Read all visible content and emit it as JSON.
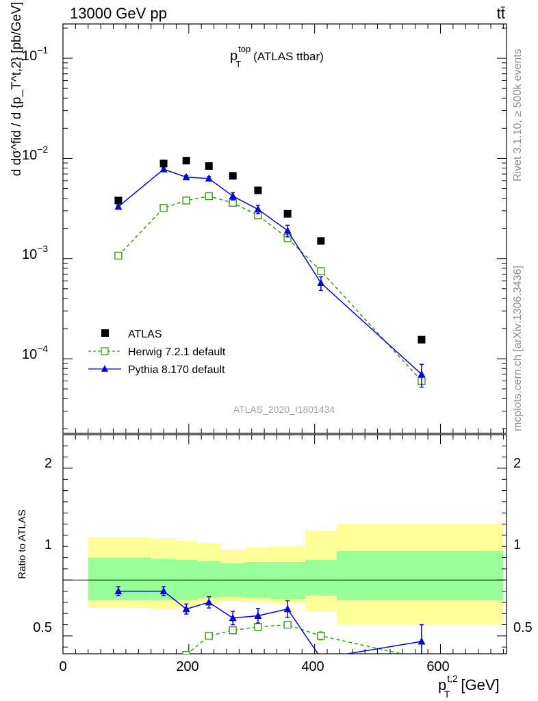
{
  "header": {
    "energy_label": "13000 GeV pp",
    "process_label": "tt̄"
  },
  "side_labels": {
    "rivet": "Rivet 3.1.10, ≥ 500k events",
    "source": "mcplots.cern.ch [arXiv:1306.3436]"
  },
  "chart_data": [
    {
      "type": "scatter",
      "panel": "main",
      "title": "p_T^top (ATLAS ttbar)",
      "title_main": "p",
      "title_sup": "top",
      "title_sub": "T",
      "title_rest": "(ATLAS ttbar)",
      "ylabel": "d dσ^fid / d {p_T^t,2} [pb/GeV]",
      "yscale": "log",
      "ylim": [
        1.8e-05,
        0.22
      ],
      "xlim": [
        0,
        705
      ],
      "y_tick_labels": [
        "10",
        "10",
        "10",
        "10"
      ],
      "y_tick_exponents": [
        "−1",
        "−2",
        "−3",
        "−4"
      ],
      "analysis_label": "ATLAS_2020_I1801434",
      "series": [
        {
          "name": "ATLAS",
          "marker": "filled-square",
          "color": "#000000",
          "points": [
            {
              "x": 88,
              "y": 0.0038
            },
            {
              "x": 160,
              "y": 0.0089
            },
            {
              "x": 196,
              "y": 0.0095
            },
            {
              "x": 232,
              "y": 0.0084
            },
            {
              "x": 270,
              "y": 0.0067
            },
            {
              "x": 310,
              "y": 0.0048
            },
            {
              "x": 357,
              "y": 0.0028
            },
            {
              "x": 410,
              "y": 0.0015
            },
            {
              "x": 570,
              "y": 0.000155
            }
          ]
        },
        {
          "name": "Herwig 7.2.1 default",
          "marker": "open-square",
          "line": "dashed",
          "color": "#3a9a10",
          "points": [
            {
              "x": 88,
              "y": 0.00107
            },
            {
              "x": 160,
              "y": 0.0032
            },
            {
              "x": 196,
              "y": 0.0038
            },
            {
              "x": 232,
              "y": 0.0042
            },
            {
              "x": 270,
              "y": 0.0036
            },
            {
              "x": 310,
              "y": 0.0027
            },
            {
              "x": 357,
              "y": 0.0016
            },
            {
              "x": 410,
              "y": 0.00075
            },
            {
              "x": 570,
              "y": 6e-05
            }
          ]
        },
        {
          "name": "Pythia 8.170 default",
          "marker": "filled-triangle",
          "line": "solid",
          "color": "#0000e0",
          "points": [
            {
              "x": 88,
              "y": 0.0033,
              "err": 0.00012
            },
            {
              "x": 160,
              "y": 0.0078,
              "err": 0.00025
            },
            {
              "x": 196,
              "y": 0.0065,
              "err": 0.00025
            },
            {
              "x": 232,
              "y": 0.0063,
              "err": 0.00028
            },
            {
              "x": 270,
              "y": 0.0042,
              "err": 0.00035
            },
            {
              "x": 310,
              "y": 0.0031,
              "err": 0.0003
            },
            {
              "x": 357,
              "y": 0.0019,
              "err": 0.00025
            },
            {
              "x": 410,
              "y": 0.00057,
              "err": 9e-05
            },
            {
              "x": 570,
              "y": 7e-05,
              "err": 1.8e-05
            }
          ]
        }
      ]
    },
    {
      "type": "scatter",
      "panel": "ratio",
      "ylabel": "Ratio to ATLAS",
      "xlabel": "p_T^t,2 [GeV]",
      "xlabel_main": "p",
      "xlabel_sup": "t,2",
      "xlabel_sub": "T",
      "xlabel_rest": "[GeV]",
      "ylim": [
        0.34,
        2.3
      ],
      "xlim": [
        0,
        705
      ],
      "x_tick_labels": [
        "0",
        "200",
        "400",
        "600"
      ],
      "y_tick_labels": [
        "0.5",
        "1",
        "2"
      ],
      "bands": [
        {
          "x0": 40,
          "x1": 140,
          "inner": [
            0.82,
            1.2
          ],
          "outer": [
            0.75,
            1.38
          ]
        },
        {
          "x0": 140,
          "x1": 180,
          "inner": [
            0.82,
            1.19
          ],
          "outer": [
            0.74,
            1.37
          ]
        },
        {
          "x0": 180,
          "x1": 214,
          "inner": [
            0.82,
            1.18
          ],
          "outer": [
            0.76,
            1.35
          ]
        },
        {
          "x0": 214,
          "x1": 250,
          "inner": [
            0.84,
            1.17
          ],
          "outer": [
            0.79,
            1.33
          ]
        },
        {
          "x0": 250,
          "x1": 290,
          "inner": [
            0.85,
            1.15
          ],
          "outer": [
            0.81,
            1.27
          ]
        },
        {
          "x0": 290,
          "x1": 330,
          "inner": [
            0.84,
            1.16
          ],
          "outer": [
            0.8,
            1.29
          ]
        },
        {
          "x0": 330,
          "x1": 385,
          "inner": [
            0.83,
            1.16
          ],
          "outer": [
            0.79,
            1.3
          ]
        },
        {
          "x0": 385,
          "x1": 435,
          "inner": [
            0.86,
            1.18
          ],
          "outer": [
            0.72,
            1.44
          ]
        },
        {
          "x0": 435,
          "x1": 700,
          "inner": [
            0.82,
            1.26
          ],
          "outer": [
            0.6,
            1.5
          ]
        }
      ],
      "series": [
        {
          "name": "Herwig 7.2.1 default",
          "marker": "open-square",
          "line": "dashed",
          "color": "#3a9a10",
          "points": [
            {
              "x": 196,
              "y": 0.33,
              "err": 0
            },
            {
              "x": 232,
              "y": 0.5,
              "err": 0.015
            },
            {
              "x": 270,
              "y": 0.55,
              "err": 0.015
            },
            {
              "x": 310,
              "y": 0.58,
              "err": 0.02
            },
            {
              "x": 357,
              "y": 0.6,
              "err": 0.025
            },
            {
              "x": 410,
              "y": 0.5,
              "err": 0.035
            },
            {
              "x": 570,
              "y": 0.3,
              "err": 0
            }
          ]
        },
        {
          "name": "Pythia 8.170 default",
          "marker": "filled-triangle",
          "line": "solid",
          "color": "#0000e0",
          "points": [
            {
              "x": 88,
              "y": 0.9,
              "err": 0.04
            },
            {
              "x": 160,
              "y": 0.9,
              "err": 0.04
            },
            {
              "x": 196,
              "y": 0.74,
              "err": 0.045
            },
            {
              "x": 232,
              "y": 0.8,
              "err": 0.05
            },
            {
              "x": 270,
              "y": 0.66,
              "err": 0.06
            },
            {
              "x": 310,
              "y": 0.68,
              "err": 0.065
            },
            {
              "x": 357,
              "y": 0.74,
              "err": 0.075
            },
            {
              "x": 410,
              "y": 0.3,
              "err": 0
            },
            {
              "x": 570,
              "y": 0.45,
              "err": 0.15
            }
          ]
        }
      ]
    }
  ]
}
